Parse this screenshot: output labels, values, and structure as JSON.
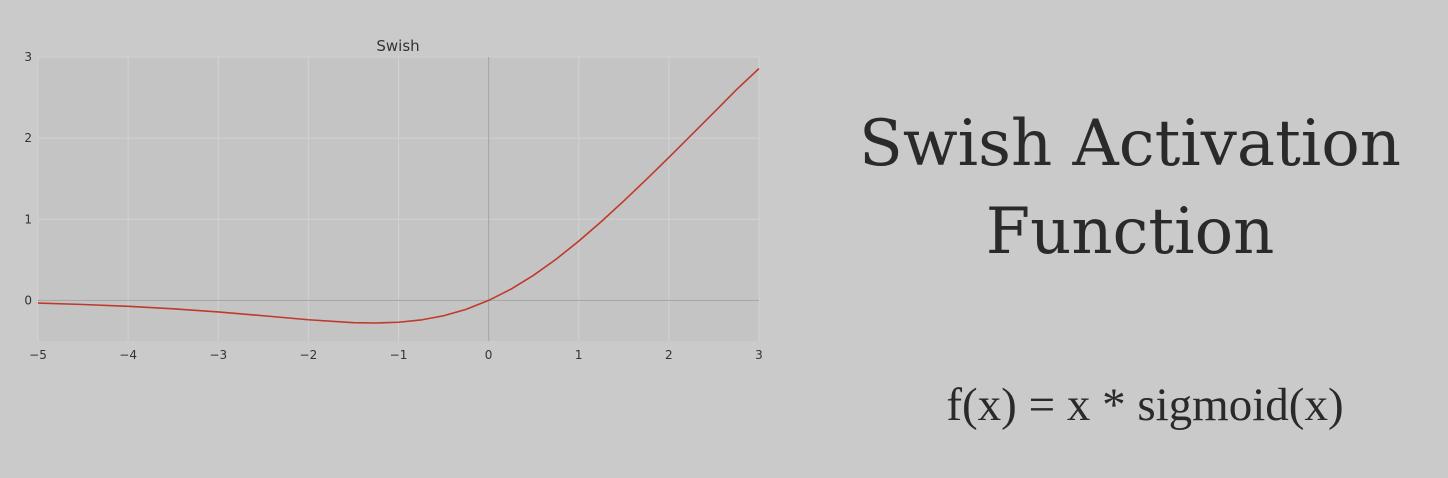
{
  "chart_data": {
    "type": "line",
    "title": "Swish",
    "xlabel": "",
    "ylabel": "",
    "xlim": [
      -5,
      3
    ],
    "ylim": [
      -0.5,
      3
    ],
    "xticks": [
      -5,
      -4,
      -3,
      -2,
      -1,
      0,
      1,
      2,
      3
    ],
    "yticks": [
      0,
      1,
      2,
      3
    ],
    "xtick_labels": [
      "−5",
      "−4",
      "−3",
      "−2",
      "−1",
      "0",
      "1",
      "2",
      "3"
    ],
    "ytick_labels": [
      "0",
      "1",
      "2",
      "3"
    ],
    "grid": true,
    "series": [
      {
        "x": [
          -5,
          -4.5,
          -4,
          -3.5,
          -3,
          -2.5,
          -2,
          -1.5,
          -1.25,
          -1,
          -0.75,
          -0.5,
          -0.25,
          0,
          0.25,
          0.5,
          0.75,
          1,
          1.25,
          1.5,
          1.75,
          2,
          2.25,
          2.5,
          2.75,
          3
        ],
        "y": [
          -0.033,
          -0.05,
          -0.072,
          -0.103,
          -0.142,
          -0.189,
          -0.238,
          -0.274,
          -0.278,
          -0.269,
          -0.241,
          -0.189,
          -0.11,
          0,
          0.14,
          0.311,
          0.509,
          0.731,
          0.971,
          1.226,
          1.491,
          1.762,
          2.039,
          2.317,
          2.597,
          2.858
        ],
        "color": "#c0392b"
      }
    ]
  },
  "headline": {
    "line1": "Swish Activation",
    "line2": "Function"
  },
  "formula": "f(x) = x * sigmoid(x)"
}
